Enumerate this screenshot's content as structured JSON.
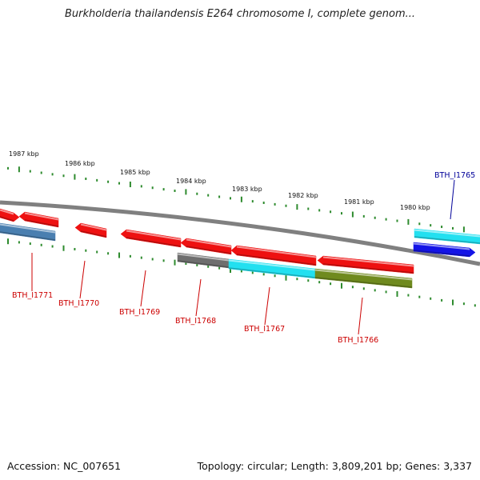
{
  "title": "Burkholderia thailandensis E264 chromosome I, complete genom...",
  "footer": {
    "accession": "Accession: NC_007651",
    "topology": "Topology: circular; Length: 3,809,201 bp; Genes: 3,337"
  },
  "scale_labels": [
    "1987 kbp",
    "1986 kbp",
    "1985 kbp",
    "1984 kbp",
    "1983 kbp",
    "1982 kbp",
    "1981 kbp",
    "1980 kbp"
  ],
  "colors": {
    "backbone": "#808080",
    "tick": "#2e8b2e",
    "red": "#ee1111",
    "steel": "#4a7fb0",
    "gray": "#6e6e6e",
    "cyan": "#22e0f0",
    "olive": "#6f8a1e",
    "blue": "#1414e6",
    "label_red": "#cc0000",
    "label_blue": "#000099"
  },
  "genes": [
    {
      "label": "BTH_I1771",
      "color": "red"
    },
    {
      "label": "BTH_I1770",
      "color": "red"
    },
    {
      "label": "BTH_I1769",
      "color": "red"
    },
    {
      "label": "BTH_I1768",
      "color": "red"
    },
    {
      "label": "BTH_I1767",
      "color": "red"
    },
    {
      "label": "BTH_I1766",
      "color": "red"
    },
    {
      "label": "BTH_I1765",
      "color": "blue"
    }
  ]
}
